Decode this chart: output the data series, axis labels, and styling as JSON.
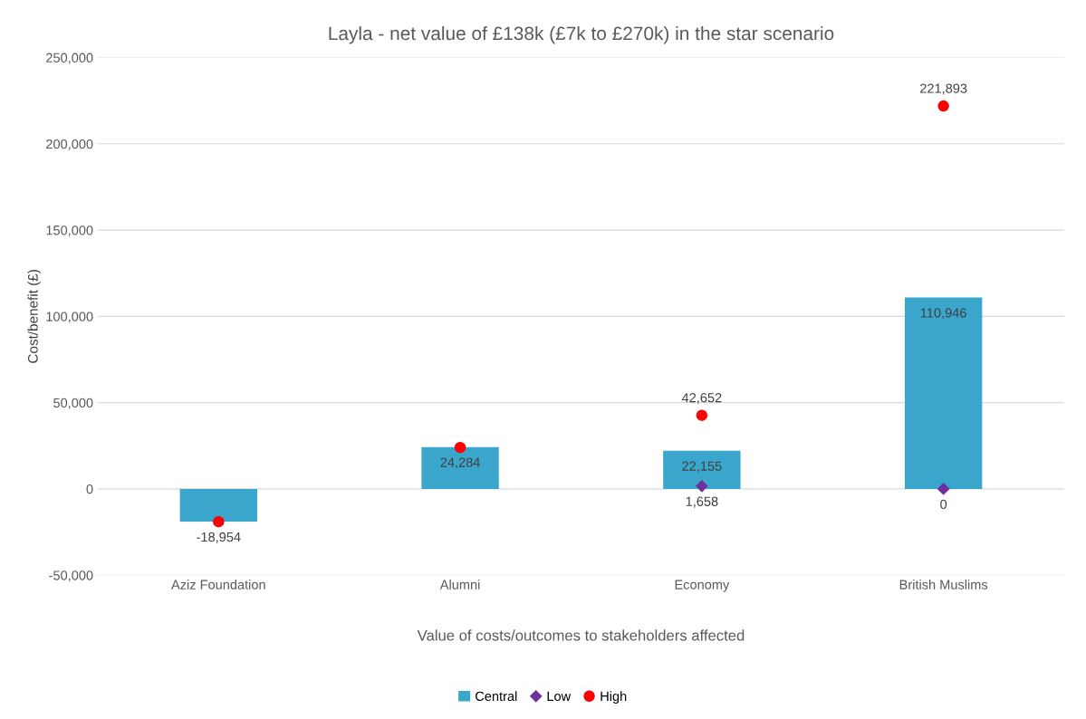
{
  "chart_data": {
    "type": "bar",
    "title": "Layla - net value of £138k (£7k to £270k) in the star scenario",
    "xlabel": "Value of costs/outcomes to stakeholders affected",
    "ylabel": "Cost/benefit (£)",
    "categories": [
      "Aziz Foundation",
      "Alumni",
      "Economy",
      "British Muslims"
    ],
    "series": [
      {
        "name": "Central",
        "color": "#3ba6cc",
        "values": [
          -18954,
          24284,
          22155,
          110946
        ],
        "value_labels": [
          "-18,954",
          "24,284",
          "22,155",
          "110,946"
        ]
      },
      {
        "name": "Low",
        "type": "scatter",
        "marker": "diamond",
        "color": "#7030a0",
        "values": [
          null,
          null,
          1658,
          0
        ],
        "value_labels": [
          null,
          null,
          "1,658",
          "0"
        ]
      },
      {
        "name": "High",
        "type": "scatter",
        "marker": "circle",
        "color": "#ff0000",
        "values": [
          -19000,
          24000,
          42652,
          221893
        ],
        "value_labels": [
          null,
          null,
          "42,652",
          "221,893"
        ]
      }
    ],
    "ylim": [
      -50000,
      250000
    ],
    "yticks": [
      {
        "value": -50000,
        "label": "-50,000"
      },
      0,
      {
        "value": 50000,
        "label": "50,000"
      },
      {
        "value": 100000,
        "label": "100,000"
      },
      {
        "value": 150000,
        "label": "150,000"
      },
      {
        "value": 200000,
        "label": "200,000"
      },
      {
        "value": 250000,
        "label": "250,000"
      }
    ],
    "grid": "y",
    "legend": "bottom"
  }
}
